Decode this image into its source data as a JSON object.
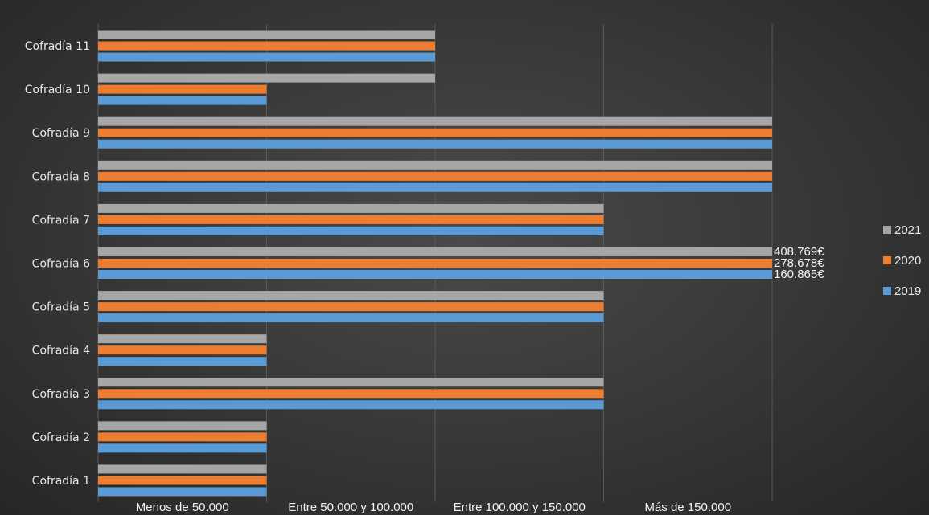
{
  "chart_data": {
    "type": "bar",
    "orientation": "horizontal",
    "categories": [
      "Cofradía 1",
      "Cofradía 2",
      "Cofradía 3",
      "Cofradía 4",
      "Cofradía 5",
      "Cofradía 6",
      "Cofradía 7",
      "Cofradía 8",
      "Cofradía 9",
      "Cofradía 10",
      "Cofradía 11"
    ],
    "x_tick_labels": [
      "Menos de 50.000",
      "Entre 50.000 y 100.000",
      "Entre 100.000 y 150.000",
      "Más de 150.000"
    ],
    "xlim": [
      0,
      4.5
    ],
    "grid": true,
    "legend_position": "right",
    "series": [
      {
        "name": "2021",
        "color": "#a6a6a6",
        "values": [
          1,
          1,
          3,
          1,
          3,
          4,
          3,
          4,
          4,
          2,
          2
        ]
      },
      {
        "name": "2020",
        "color": "#ed7d31",
        "values": [
          1,
          1,
          3,
          1,
          3,
          4,
          3,
          4,
          4,
          1,
          2
        ]
      },
      {
        "name": "2019",
        "color": "#5b9bd5",
        "values": [
          1,
          1,
          3,
          1,
          3,
          4,
          3,
          4,
          4,
          1,
          2
        ]
      }
    ],
    "annotations": [
      {
        "category": "Cofradía 6",
        "series": "2021",
        "text": "408.769€"
      },
      {
        "category": "Cofradía 6",
        "series": "2020",
        "text": "278.678€"
      },
      {
        "category": "Cofradía 6",
        "series": "2019",
        "text": "160.865€"
      }
    ]
  }
}
